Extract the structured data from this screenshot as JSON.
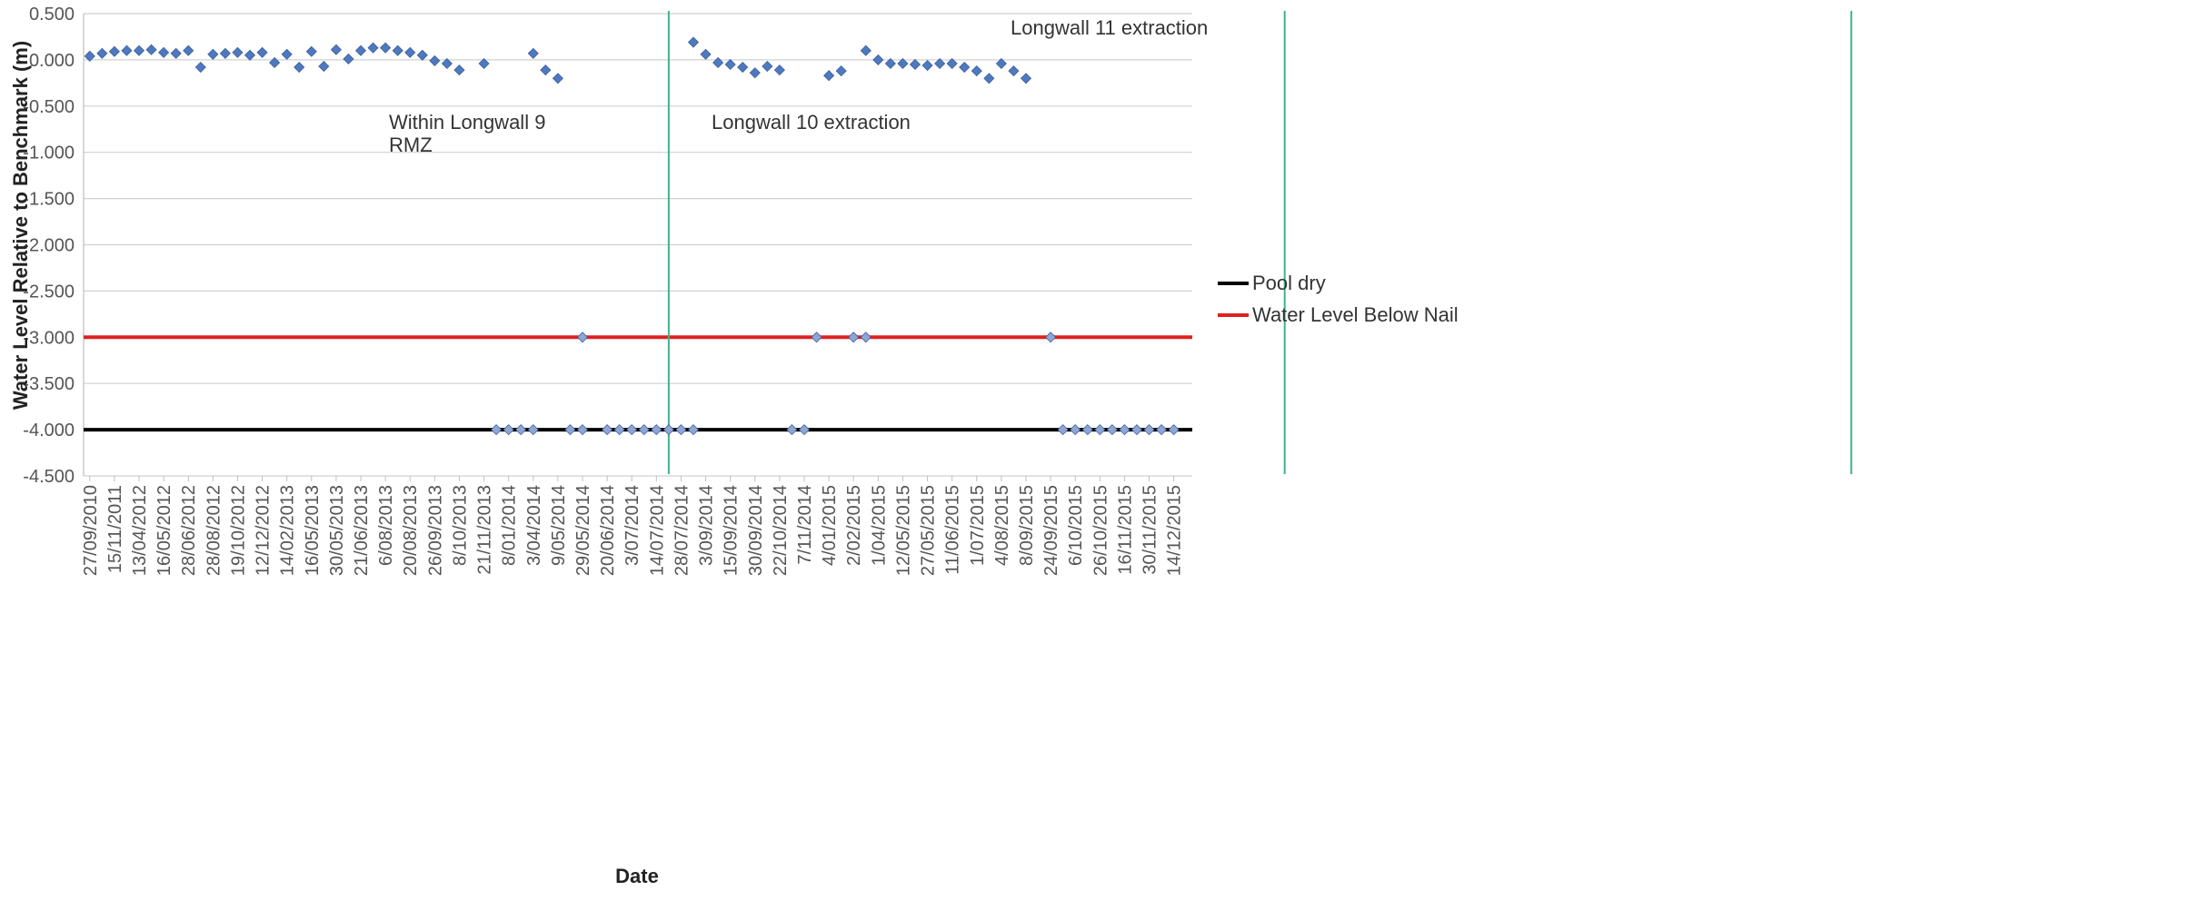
{
  "chart_data": {
    "type": "scatter",
    "title": "",
    "xlabel": "Date",
    "ylabel": "Water Level Relative to Benchmark (m)",
    "ylim": [
      -4.5,
      0.5
    ],
    "yticks": [
      "0.500",
      "0.000",
      "-0.500",
      "-1.000",
      "-1.500",
      "-2.000",
      "-2.500",
      "-3.000",
      "-3.500",
      "-4.000",
      "-4.500"
    ],
    "ytick_values": [
      0.5,
      0,
      -0.5,
      -1,
      -1.5,
      -2,
      -2.5,
      -3,
      -3.5,
      -4,
      -4.5
    ],
    "x_tick_labels": [
      "27/09/2010",
      "15/11/2011",
      "13/04/2012",
      "16/05/2012",
      "28/06/2012",
      "28/08/2012",
      "19/10/2012",
      "12/12/2012",
      "14/02/2013",
      "16/05/2013",
      "30/05/2013",
      "21/06/2013",
      "6/08/2013",
      "20/08/2013",
      "26/09/2013",
      "8/10/2013",
      "21/11/2013",
      "8/01/2014",
      "3/04/2014",
      "9/05/2014",
      "29/05/2014",
      "20/06/2014",
      "3/07/2014",
      "14/07/2014",
      "28/07/2014",
      "3/09/2014",
      "15/09/2014",
      "30/09/2014",
      "22/10/2014",
      "7/11/2014",
      "4/01/2015",
      "2/02/2015",
      "1/04/2015",
      "12/05/2015",
      "27/05/2015",
      "11/06/2015",
      "1/07/2015",
      "4/08/2015",
      "8/09/2015",
      "24/09/2015",
      "6/10/2015",
      "26/10/2015",
      "16/11/2015",
      "30/11/2015",
      "14/12/2015"
    ],
    "grid": "horizontal",
    "legend_placement": "right",
    "series": [
      {
        "name": "",
        "marker": "diamond",
        "color": "#4f79bf",
        "points": [
          [
            1,
            0.04
          ],
          [
            2,
            0.07
          ],
          [
            3,
            0.09
          ],
          [
            4,
            0.1
          ],
          [
            5,
            0.1
          ],
          [
            6,
            0.11
          ],
          [
            7,
            0.08
          ],
          [
            8,
            0.07
          ],
          [
            9,
            0.1
          ],
          [
            10,
            -0.08
          ],
          [
            11,
            0.06
          ],
          [
            12,
            0.07
          ],
          [
            13,
            0.08
          ],
          [
            14,
            0.05
          ],
          [
            15,
            0.08
          ],
          [
            16,
            -0.03
          ],
          [
            17,
            0.06
          ],
          [
            18,
            -0.08
          ],
          [
            19,
            0.09
          ],
          [
            20,
            -0.07
          ],
          [
            21,
            0.11
          ],
          [
            22,
            0.01
          ],
          [
            23,
            0.1
          ],
          [
            24,
            0.13
          ],
          [
            25,
            0.13
          ],
          [
            26,
            0.1
          ],
          [
            27,
            0.08
          ],
          [
            28,
            0.05
          ],
          [
            29,
            -0.01
          ],
          [
            30,
            -0.04
          ],
          [
            31,
            -0.11
          ],
          [
            33,
            -0.04
          ],
          [
            37,
            0.07
          ],
          [
            38,
            -0.11
          ],
          [
            39,
            -0.2
          ],
          [
            50,
            0.19
          ],
          [
            51,
            0.06
          ],
          [
            52,
            -0.03
          ],
          [
            53,
            -0.05
          ],
          [
            54,
            -0.08
          ],
          [
            55,
            -0.14
          ],
          [
            56,
            -0.07
          ],
          [
            57,
            -0.11
          ],
          [
            61,
            -0.17
          ],
          [
            62,
            -0.12
          ],
          [
            64,
            0.1
          ],
          [
            65,
            0.0
          ],
          [
            66,
            -0.04
          ],
          [
            67,
            -0.04
          ],
          [
            68,
            -0.05
          ],
          [
            69,
            -0.06
          ],
          [
            70,
            -0.04
          ],
          [
            71,
            -0.04
          ],
          [
            72,
            -0.08
          ],
          [
            73,
            -0.12
          ],
          [
            74,
            -0.2
          ],
          [
            75,
            -0.04
          ],
          [
            76,
            -0.12
          ],
          [
            77,
            -0.2
          ]
        ]
      },
      {
        "name": "",
        "marker": "diamond",
        "color": "#8fa6d4",
        "points": [
          [
            41,
            -3.0
          ],
          [
            60,
            -3.0
          ],
          [
            63,
            -3.0
          ],
          [
            64,
            -3.0
          ],
          [
            79,
            -3.0
          ]
        ]
      },
      {
        "name": "",
        "marker": "diamond",
        "color": "#8fa6d4",
        "points": [
          [
            34,
            -4.0
          ],
          [
            35,
            -4.0
          ],
          [
            36,
            -4.0
          ],
          [
            37,
            -4.0
          ],
          [
            40,
            -4.0
          ],
          [
            41,
            -4.0
          ],
          [
            43,
            -4.0
          ],
          [
            44,
            -4.0
          ],
          [
            45,
            -4.0
          ],
          [
            46,
            -4.0
          ],
          [
            47,
            -4.0
          ],
          [
            48,
            -4.0
          ],
          [
            49,
            -4.0
          ],
          [
            50,
            -4.0
          ],
          [
            58,
            -4.0
          ],
          [
            59,
            -4.0
          ],
          [
            80,
            -4.0
          ],
          [
            81,
            -4.0
          ],
          [
            82,
            -4.0
          ],
          [
            83,
            -4.0
          ],
          [
            84,
            -4.0
          ],
          [
            85,
            -4.0
          ],
          [
            86,
            -4.0
          ],
          [
            87,
            -4.0
          ],
          [
            88,
            -4.0
          ],
          [
            89,
            -4.0
          ]
        ]
      }
    ],
    "reference_lines": [
      {
        "name": "Pool dry",
        "y": -4.0,
        "color": "#000000"
      },
      {
        "name": "Water Level Below Nail",
        "y": -3.0,
        "color": "#e02020"
      }
    ],
    "vertical_lines": [
      {
        "x_index": 24,
        "color": "#3fb38a"
      },
      {
        "x_index": 49,
        "color": "#3fb38a"
      },
      {
        "x_index": 72,
        "color": "#3fb38a"
      }
    ],
    "annotations": [
      {
        "lines": [
          "Within Longwall 9",
          "RMZ"
        ]
      },
      {
        "lines": [
          "Longwall 10 extraction"
        ]
      },
      {
        "lines": [
          "Longwall 11 extraction"
        ]
      }
    ]
  }
}
